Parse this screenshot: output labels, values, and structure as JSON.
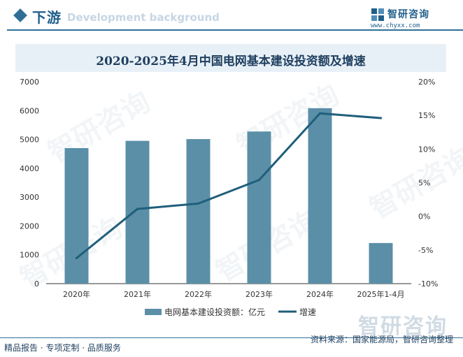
{
  "header": {
    "section_title": "下游",
    "section_subtitle": "Development background",
    "logo_name": "智研咨询",
    "logo_url": "www.chyxx.com",
    "logo_icon": "zhiyan-logo-icon"
  },
  "watermark": {
    "text": "智研咨询"
  },
  "footer": {
    "left": "精品报告 · 专项定制 · 品质服务",
    "source": "资料来源：国家能源局，智研咨询整理"
  },
  "colors": {
    "bar": "#5b8fa8",
    "line": "#1f5f7a",
    "accent": "#2f6f97"
  },
  "chart_data": {
    "type": "bar",
    "title": "2020-2025年4月中国电网基本建设投资额及增速",
    "categories": [
      "2020年",
      "2021年",
      "2022年",
      "2023年",
      "2024年",
      "2025年1-4月"
    ],
    "series": [
      {
        "name": "电网基本建设投资额：亿元",
        "type": "bar",
        "axis": "left",
        "values": [
          4699,
          4951,
          5012,
          5275,
          6083,
          1408
        ]
      },
      {
        "name": "增速",
        "type": "line",
        "axis": "right",
        "values": [
          -6.2,
          1.1,
          1.9,
          5.4,
          15.3,
          14.6
        ]
      }
    ],
    "y_left": {
      "ylim": [
        0,
        7000
      ],
      "ticks": [
        0,
        1000,
        2000,
        3000,
        4000,
        5000,
        6000,
        7000
      ]
    },
    "y_right": {
      "ylim": [
        -10,
        20
      ],
      "ticks": [
        "-10%",
        "-5%",
        "0%",
        "5%",
        "10%",
        "15%",
        "20%"
      ]
    },
    "legend": "bottom",
    "grid": false
  }
}
